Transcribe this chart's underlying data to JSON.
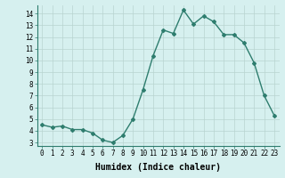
{
  "x": [
    0,
    1,
    2,
    3,
    4,
    5,
    6,
    7,
    8,
    9,
    10,
    11,
    12,
    13,
    14,
    15,
    16,
    17,
    18,
    19,
    20,
    21,
    22,
    23
  ],
  "y": [
    4.5,
    4.3,
    4.4,
    4.1,
    4.1,
    3.8,
    3.2,
    3.0,
    3.6,
    5.0,
    7.5,
    10.4,
    12.6,
    12.3,
    14.3,
    13.1,
    13.8,
    13.3,
    12.2,
    12.2,
    11.5,
    9.8,
    7.0,
    5.3
  ],
  "line_color": "#2e7d6e",
  "marker": "D",
  "marker_size": 2.0,
  "bg_color": "#d6f0ef",
  "grid_color": "#b8d4d0",
  "xlabel": "Humidex (Indice chaleur)",
  "xlabel_fontsize": 7,
  "xlim": [
    -0.5,
    23.5
  ],
  "ylim": [
    2.7,
    14.7
  ],
  "yticks": [
    3,
    4,
    5,
    6,
    7,
    8,
    9,
    10,
    11,
    12,
    13,
    14
  ],
  "xticks": [
    0,
    1,
    2,
    3,
    4,
    5,
    6,
    7,
    8,
    9,
    10,
    11,
    12,
    13,
    14,
    15,
    16,
    17,
    18,
    19,
    20,
    21,
    22,
    23
  ],
  "tick_fontsize": 5.5,
  "line_width": 1.0
}
